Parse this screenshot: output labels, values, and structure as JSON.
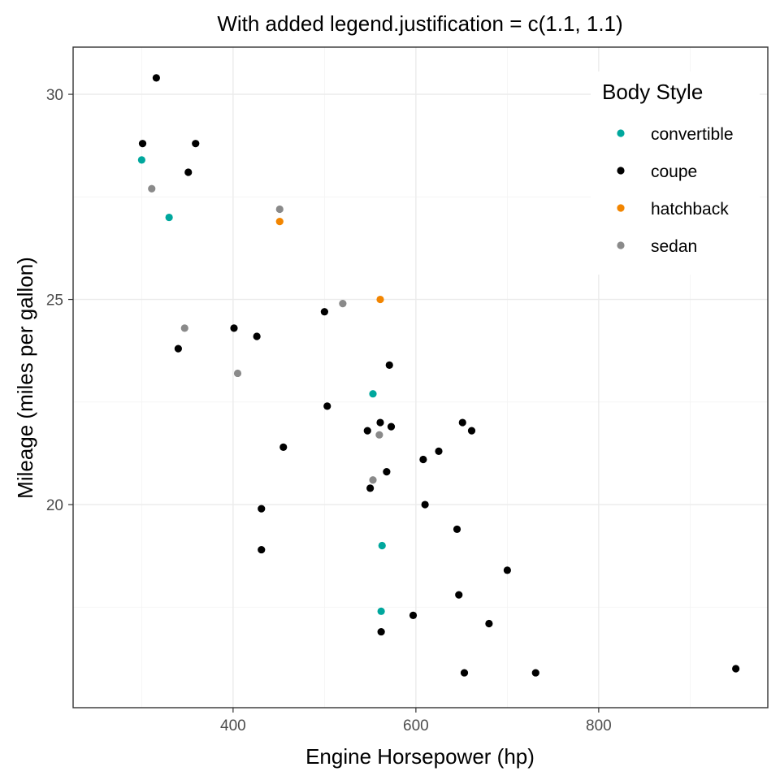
{
  "chart_data": {
    "type": "scatter",
    "title": "With added legend.justification = c(1.1, 1.1)",
    "xlabel": "Engine Horsepower (hp)",
    "ylabel": "Mileage (miles per gallon)",
    "xlim": [
      225,
      985
    ],
    "ylim": [
      15.05,
      31.15
    ],
    "x_ticks": [
      400,
      600,
      800
    ],
    "y_ticks": [
      20,
      25,
      30
    ],
    "x_tick_labels": [
      "400",
      "600",
      "800"
    ],
    "y_tick_labels": [
      "20",
      "25",
      "30"
    ],
    "grid": true,
    "legend": {
      "title": "Body Style",
      "placement": "top-right inside"
    },
    "series": [
      {
        "name": "convertible",
        "color": "#00a79d",
        "points": [
          [
            300,
            28.4
          ],
          [
            330,
            27.0
          ],
          [
            553,
            22.7
          ],
          [
            563,
            19.0
          ],
          [
            562,
            17.4
          ]
        ]
      },
      {
        "name": "coupe",
        "color": "#000000",
        "points": [
          [
            316,
            30.4
          ],
          [
            301,
            28.8
          ],
          [
            359,
            28.8
          ],
          [
            351,
            28.1
          ],
          [
            401,
            24.3
          ],
          [
            426,
            24.1
          ],
          [
            340,
            23.8
          ],
          [
            500,
            24.7
          ],
          [
            571,
            23.4
          ],
          [
            503,
            22.4
          ],
          [
            547,
            21.8
          ],
          [
            561,
            22.0
          ],
          [
            573,
            21.9
          ],
          [
            651,
            22.0
          ],
          [
            661,
            21.8
          ],
          [
            455,
            21.4
          ],
          [
            625,
            21.3
          ],
          [
            608,
            21.1
          ],
          [
            568,
            20.8
          ],
          [
            550,
            20.4
          ],
          [
            610,
            20.0
          ],
          [
            431,
            19.9
          ],
          [
            645,
            19.4
          ],
          [
            431,
            18.9
          ],
          [
            700,
            18.4
          ],
          [
            647,
            17.8
          ],
          [
            597,
            17.3
          ],
          [
            680,
            17.1
          ],
          [
            562,
            16.9
          ],
          [
            653,
            15.9
          ],
          [
            731,
            15.9
          ],
          [
            950,
            16.0
          ]
        ]
      },
      {
        "name": "hatchback",
        "color": "#f28500",
        "points": [
          [
            451,
            26.9
          ],
          [
            561,
            25.0
          ]
        ]
      },
      {
        "name": "sedan",
        "color": "#8a8a8a",
        "points": [
          [
            311,
            27.7
          ],
          [
            451,
            27.2
          ],
          [
            520,
            24.9
          ],
          [
            347,
            24.3
          ],
          [
            405,
            23.2
          ],
          [
            560,
            21.7
          ],
          [
            553,
            20.6
          ]
        ]
      }
    ]
  }
}
